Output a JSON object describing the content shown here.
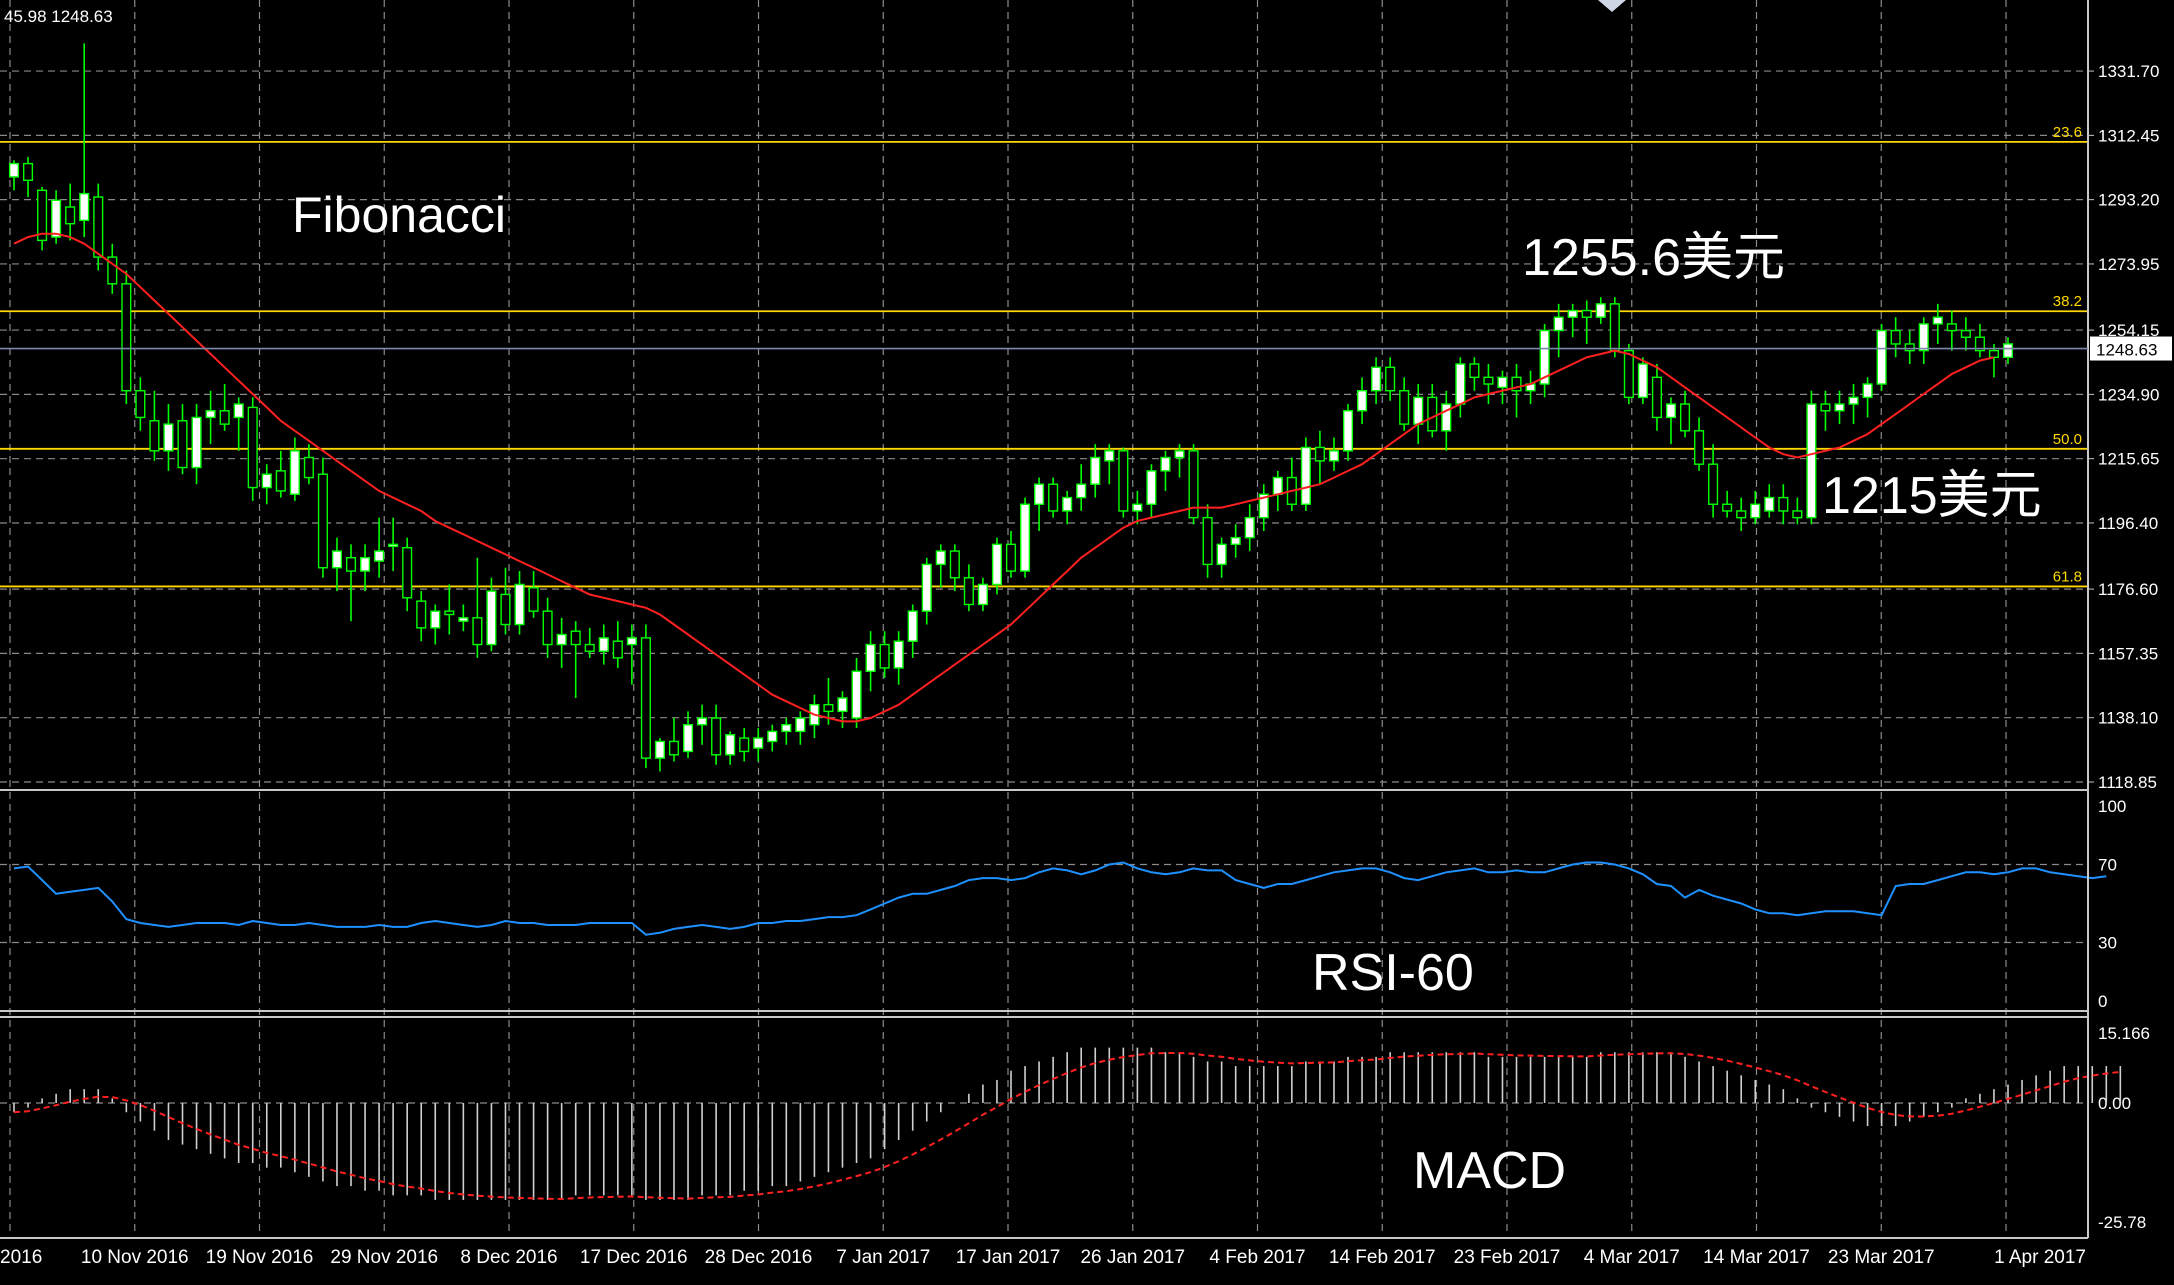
{
  "info_text": "45.98 1248.63",
  "colors": {
    "background": "#000000",
    "grid": "#8a8a8a",
    "bull_candle": "#ffffff",
    "bear_candle": "#000000",
    "wick": "#00ff00",
    "ma_line": "#ff2020",
    "fib_line": "#ffd800",
    "rsi_line": "#1e90ff",
    "macd_hist": "#d0d0d0",
    "macd_signal": "#ff2020",
    "price_line": "#7a8aa8"
  },
  "annotations": {
    "fibonacci": "Fibonacci",
    "high": "1255.6美元",
    "low": "1215美元",
    "rsi": "RSI-60",
    "macd": "MACD"
  },
  "chart_data": [
    {
      "type": "candlestick",
      "panel": "price",
      "ylim": [
        1118.85,
        1341.0
      ],
      "y_ticks": [
        "1331.70",
        "1312.45",
        "1293.20",
        "1273.95",
        "1254.15",
        "1234.90",
        "1215.65",
        "1196.40",
        "1176.60",
        "1157.35",
        "1138.10",
        "1118.85"
      ],
      "current_price": "1248.63",
      "x_labels": [
        "2016",
        "10 Nov 2016",
        "19 Nov 2016",
        "29 Nov 2016",
        "8 Dec 2016",
        "17 Dec 2016",
        "28 Dec 2016",
        "7 Jan 2017",
        "17 Jan 2017",
        "26 Jan 2017",
        "4 Feb 2017",
        "14 Feb 2017",
        "23 Feb 2017",
        "4 Mar 2017",
        "14 Mar 2017",
        "23 Mar 2017",
        "1 Apr 2017"
      ],
      "fibonacci": [
        {
          "level": "23.6",
          "price": 1310.5
        },
        {
          "level": "38.2",
          "price": 1259.8
        },
        {
          "level": "50.0",
          "price": 1218.6
        },
        {
          "level": "61.8",
          "price": 1177.4
        }
      ],
      "candles": [
        [
          1300,
          1305,
          1296,
          1304
        ],
        [
          1304,
          1306,
          1294,
          1299
        ],
        [
          1296,
          1297,
          1278,
          1281
        ],
        [
          1282,
          1296,
          1280,
          1293
        ],
        [
          1291,
          1298,
          1281,
          1286
        ],
        [
          1287,
          1340,
          1282,
          1295
        ],
        [
          1294,
          1298,
          1272,
          1276
        ],
        [
          1276,
          1280,
          1265,
          1268
        ],
        [
          1268,
          1272,
          1232,
          1236
        ],
        [
          1236,
          1240,
          1224,
          1228
        ],
        [
          1227,
          1236,
          1215,
          1218
        ],
        [
          1218,
          1232,
          1212,
          1226
        ],
        [
          1227,
          1232,
          1211,
          1213
        ],
        [
          1213,
          1232,
          1208,
          1228
        ],
        [
          1228,
          1236,
          1220,
          1230
        ],
        [
          1230,
          1238,
          1224,
          1226
        ],
        [
          1228,
          1234,
          1218,
          1232
        ],
        [
          1231,
          1234,
          1203,
          1207
        ],
        [
          1207,
          1214,
          1202,
          1211
        ],
        [
          1212,
          1218,
          1204,
          1206
        ],
        [
          1205,
          1222,
          1203,
          1218
        ],
        [
          1216,
          1220,
          1208,
          1210
        ],
        [
          1211,
          1216,
          1180,
          1183
        ],
        [
          1183,
          1192,
          1176,
          1188
        ],
        [
          1186,
          1190,
          1167,
          1182
        ],
        [
          1182,
          1190,
          1176,
          1186
        ],
        [
          1185,
          1198,
          1180,
          1188
        ],
        [
          1190,
          1198,
          1182,
          1190
        ],
        [
          1189,
          1192,
          1170,
          1174
        ],
        [
          1173,
          1176,
          1161,
          1165
        ],
        [
          1165,
          1172,
          1160,
          1170
        ],
        [
          1170,
          1178,
          1163,
          1169
        ],
        [
          1167,
          1172,
          1164,
          1168
        ],
        [
          1168,
          1186,
          1156,
          1160
        ],
        [
          1160,
          1180,
          1158,
          1176
        ],
        [
          1175,
          1183,
          1163,
          1166
        ],
        [
          1166,
          1182,
          1163,
          1178
        ],
        [
          1177,
          1182,
          1168,
          1170
        ],
        [
          1170,
          1174,
          1156,
          1160
        ],
        [
          1160,
          1168,
          1153,
          1163
        ],
        [
          1164,
          1167,
          1144,
          1160
        ],
        [
          1160,
          1165,
          1156,
          1158
        ],
        [
          1158,
          1166,
          1154,
          1162
        ],
        [
          1161,
          1167,
          1153,
          1156
        ],
        [
          1160,
          1166,
          1148,
          1162
        ],
        [
          1162,
          1166,
          1123,
          1126
        ],
        [
          1126,
          1132,
          1122,
          1131
        ],
        [
          1131,
          1138,
          1125,
          1127
        ],
        [
          1128,
          1140,
          1126,
          1136
        ],
        [
          1136,
          1142,
          1130,
          1138
        ],
        [
          1138,
          1142,
          1124,
          1127
        ],
        [
          1127,
          1134,
          1124,
          1133
        ],
        [
          1132,
          1135,
          1125,
          1128
        ],
        [
          1129,
          1135,
          1125,
          1132
        ],
        [
          1131,
          1136,
          1128,
          1134
        ],
        [
          1134,
          1138,
          1130,
          1136
        ],
        [
          1134,
          1140,
          1130,
          1138
        ],
        [
          1136,
          1145,
          1132,
          1142
        ],
        [
          1142,
          1150,
          1136,
          1140
        ],
        [
          1140,
          1146,
          1135,
          1144
        ],
        [
          1138,
          1156,
          1135,
          1152
        ],
        [
          1152,
          1164,
          1146,
          1160
        ],
        [
          1160,
          1164,
          1150,
          1153
        ],
        [
          1153,
          1164,
          1148,
          1161
        ],
        [
          1161,
          1172,
          1156,
          1170
        ],
        [
          1170,
          1186,
          1166,
          1184
        ],
        [
          1184,
          1190,
          1177,
          1188
        ],
        [
          1188,
          1190,
          1176,
          1180
        ],
        [
          1180,
          1184,
          1170,
          1172
        ],
        [
          1172,
          1180,
          1170,
          1178
        ],
        [
          1178,
          1192,
          1175,
          1190
        ],
        [
          1190,
          1194,
          1180,
          1182
        ],
        [
          1182,
          1204,
          1180,
          1202
        ],
        [
          1202,
          1210,
          1194,
          1208
        ],
        [
          1208,
          1210,
          1198,
          1200
        ],
        [
          1200,
          1206,
          1196,
          1204
        ],
        [
          1204,
          1214,
          1200,
          1208
        ],
        [
          1208,
          1220,
          1204,
          1216
        ],
        [
          1215,
          1220,
          1208,
          1218
        ],
        [
          1218,
          1219,
          1198,
          1200
        ],
        [
          1200,
          1206,
          1196,
          1202
        ],
        [
          1202,
          1214,
          1198,
          1212
        ],
        [
          1212,
          1218,
          1206,
          1216
        ],
        [
          1216,
          1220,
          1210,
          1218
        ],
        [
          1218,
          1220,
          1196,
          1198
        ],
        [
          1198,
          1202,
          1180,
          1184
        ],
        [
          1184,
          1192,
          1180,
          1190
        ],
        [
          1190,
          1196,
          1186,
          1192
        ],
        [
          1192,
          1202,
          1188,
          1198
        ],
        [
          1198,
          1208,
          1194,
          1205
        ],
        [
          1205,
          1212,
          1200,
          1210
        ],
        [
          1210,
          1216,
          1200,
          1202
        ],
        [
          1202,
          1222,
          1200,
          1219
        ],
        [
          1219,
          1224,
          1208,
          1215
        ],
        [
          1215,
          1222,
          1212,
          1218
        ],
        [
          1218,
          1232,
          1215,
          1230
        ],
        [
          1230,
          1240,
          1226,
          1236
        ],
        [
          1236,
          1246,
          1232,
          1243
        ],
        [
          1243,
          1246,
          1233,
          1236
        ],
        [
          1236,
          1240,
          1224,
          1226
        ],
        [
          1226,
          1238,
          1220,
          1234
        ],
        [
          1234,
          1238,
          1222,
          1224
        ],
        [
          1224,
          1236,
          1218,
          1232
        ],
        [
          1232,
          1246,
          1228,
          1244
        ],
        [
          1244,
          1246,
          1236,
          1240
        ],
        [
          1240,
          1244,
          1232,
          1238
        ],
        [
          1237,
          1242,
          1232,
          1240
        ],
        [
          1240,
          1244,
          1228,
          1236
        ],
        [
          1236,
          1242,
          1232,
          1238
        ],
        [
          1238,
          1256,
          1234,
          1254
        ],
        [
          1254,
          1262,
          1246,
          1258
        ],
        [
          1258,
          1262,
          1252,
          1260
        ],
        [
          1260,
          1263,
          1250,
          1258
        ],
        [
          1258,
          1264,
          1256,
          1262
        ],
        [
          1262,
          1264,
          1246,
          1248
        ],
        [
          1248,
          1250,
          1232,
          1234
        ],
        [
          1234,
          1246,
          1232,
          1244
        ],
        [
          1240,
          1244,
          1224,
          1228
        ],
        [
          1228,
          1234,
          1220,
          1232
        ],
        [
          1232,
          1236,
          1222,
          1224
        ],
        [
          1224,
          1228,
          1212,
          1214
        ],
        [
          1214,
          1220,
          1198,
          1202
        ],
        [
          1202,
          1206,
          1198,
          1200
        ],
        [
          1200,
          1204,
          1194,
          1198
        ],
        [
          1198,
          1206,
          1196,
          1202
        ],
        [
          1200,
          1208,
          1198,
          1204
        ],
        [
          1204,
          1208,
          1196,
          1200
        ],
        [
          1200,
          1204,
          1196,
          1198
        ],
        [
          1198,
          1236,
          1196,
          1232
        ],
        [
          1232,
          1236,
          1224,
          1230
        ],
        [
          1230,
          1236,
          1226,
          1232
        ],
        [
          1232,
          1238,
          1226,
          1234
        ],
        [
          1234,
          1240,
          1228,
          1238
        ],
        [
          1238,
          1256,
          1236,
          1254
        ],
        [
          1254,
          1258,
          1246,
          1250
        ],
        [
          1250,
          1254,
          1244,
          1248
        ],
        [
          1248,
          1258,
          1244,
          1256
        ],
        [
          1256,
          1262,
          1250,
          1258
        ],
        [
          1256,
          1260,
          1248,
          1254
        ],
        [
          1254,
          1258,
          1248,
          1252
        ],
        [
          1252,
          1256,
          1246,
          1248
        ],
        [
          1248,
          1250,
          1240,
          1246
        ],
        [
          1246,
          1252,
          1244,
          1250
        ]
      ],
      "ma": [
        1280,
        1282,
        1283,
        1283,
        1282,
        1280,
        1277,
        1274,
        1271,
        1267,
        1263,
        1259,
        1255,
        1251,
        1247,
        1243,
        1239,
        1235,
        1231,
        1227,
        1224,
        1221,
        1218,
        1215,
        1212,
        1209,
        1206,
        1204,
        1202,
        1200,
        1197,
        1195,
        1193,
        1191,
        1189,
        1187,
        1185,
        1183,
        1181,
        1179,
        1177,
        1175,
        1174,
        1173,
        1172,
        1171,
        1169,
        1166,
        1163,
        1160,
        1157,
        1154,
        1151,
        1148,
        1145,
        1143,
        1141,
        1139,
        1138,
        1137,
        1137,
        1138,
        1140,
        1142,
        1145,
        1148,
        1151,
        1154,
        1157,
        1160,
        1163,
        1166,
        1170,
        1174,
        1178,
        1182,
        1186,
        1189,
        1192,
        1195,
        1197,
        1198,
        1199,
        1200,
        1201,
        1201,
        1201,
        1202,
        1203,
        1204,
        1205,
        1206,
        1207,
        1208,
        1210,
        1212,
        1214,
        1217,
        1220,
        1223,
        1226,
        1228,
        1230,
        1232,
        1234,
        1235,
        1236,
        1237,
        1238,
        1240,
        1242,
        1244,
        1246,
        1247,
        1248,
        1247,
        1245,
        1243,
        1240,
        1237,
        1234,
        1231,
        1228,
        1225,
        1222,
        1219,
        1217,
        1216,
        1217,
        1218,
        1219,
        1221,
        1223,
        1226,
        1229,
        1232,
        1235,
        1238,
        1241,
        1243,
        1245,
        1246
      ]
    },
    {
      "type": "line",
      "panel": "rsi",
      "ylim": [
        0,
        100
      ],
      "y_ticks": [
        "100",
        "70",
        "30",
        "0"
      ],
      "values": [
        68,
        69,
        62,
        55,
        56,
        57,
        58,
        51,
        42,
        40,
        39,
        38,
        39,
        40,
        40,
        40,
        39,
        41,
        40,
        39,
        39,
        40,
        39,
        38,
        38,
        38,
        39,
        38,
        38,
        40,
        41,
        40,
        39,
        38,
        39,
        41,
        40,
        40,
        39,
        39,
        39,
        40,
        40,
        40,
        40,
        34,
        35,
        37,
        38,
        39,
        38,
        37,
        38,
        40,
        40,
        41,
        41,
        42,
        43,
        43,
        44,
        47,
        50,
        53,
        55,
        55,
        57,
        59,
        62,
        63,
        63,
        62,
        63,
        66,
        68,
        67,
        65,
        67,
        70,
        71,
        68,
        66,
        65,
        66,
        68,
        67,
        67,
        62,
        60,
        58,
        60,
        60,
        62,
        64,
        66,
        67,
        68,
        68,
        66,
        63,
        62,
        64,
        66,
        67,
        68,
        66,
        66,
        67,
        66,
        66,
        68,
        70,
        71,
        71,
        70,
        68,
        65,
        60,
        59,
        53,
        57,
        54,
        52,
        50,
        47,
        45,
        45,
        44,
        45,
        46,
        46,
        46,
        45,
        44,
        59,
        60,
        60,
        62,
        64,
        66,
        66,
        65,
        66,
        68,
        68,
        66,
        65,
        64,
        63,
        64
      ]
    },
    {
      "type": "bar+line",
      "panel": "macd",
      "ylim": [
        -25.78,
        15.166
      ],
      "y_ticks": [
        "15.166",
        "0.00",
        "-25.78"
      ],
      "histogram": [
        -2,
        -1,
        1,
        2,
        3,
        3,
        3,
        1,
        -2,
        -4,
        -6,
        -8,
        -9,
        -10,
        -11,
        -12,
        -13,
        -13,
        -14,
        -14,
        -15,
        -16,
        -17,
        -18,
        -18,
        -19,
        -19,
        -20,
        -20,
        -20,
        -21,
        -21,
        -21,
        -21,
        -21,
        -21,
        -21,
        -21,
        -21,
        -21,
        -20,
        -20,
        -20,
        -20,
        -20,
        -21,
        -21,
        -21,
        -21,
        -20,
        -20,
        -20,
        -19,
        -19,
        -18,
        -18,
        -17,
        -16,
        -15,
        -14,
        -13,
        -12,
        -10,
        -8,
        -6,
        -4,
        -2,
        0,
        2,
        4,
        5,
        7,
        8,
        9,
        10,
        11,
        12,
        12,
        12,
        12,
        12,
        12,
        11,
        11,
        10,
        9,
        9,
        8,
        8,
        8,
        8,
        8,
        9,
        9,
        9,
        10,
        10,
        10,
        11,
        11,
        11,
        11,
        11,
        11,
        11,
        10,
        10,
        10,
        10,
        10,
        10,
        10,
        10,
        11,
        11,
        11,
        11,
        11,
        11,
        10,
        9,
        8,
        7,
        6,
        5,
        4,
        3,
        1,
        -1,
        -2,
        -3,
        -4,
        -5,
        -5,
        -5,
        -4,
        -3,
        -2,
        -1,
        1,
        2,
        3,
        4,
        5,
        6,
        7,
        8,
        8,
        8,
        8,
        8
      ]
    }
  ]
}
